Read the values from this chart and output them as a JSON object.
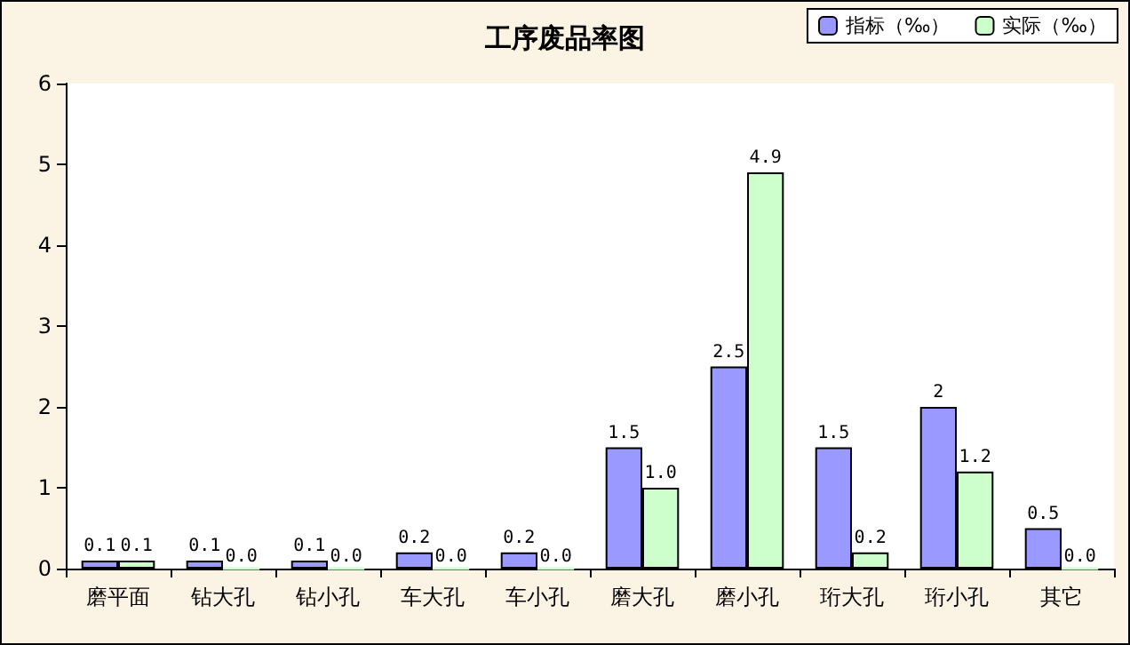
{
  "chart_data": {
    "type": "bar",
    "title": "工序废品率图",
    "categories": [
      "磨平面",
      "钻大孔",
      "钻小孔",
      "车大孔",
      "车小孔",
      "磨大孔",
      "磨小孔",
      "珩大孔",
      "珩小孔",
      "其它"
    ],
    "series": [
      {
        "name": "指标（‰）",
        "color": "#9999ff",
        "values": [
          0.1,
          0.1,
          0.1,
          0.2,
          0.2,
          1.5,
          2.5,
          1.5,
          2,
          0.5
        ],
        "value_labels": [
          "0.1",
          "0.1",
          "0.1",
          "0.2",
          "0.2",
          "1.5",
          "2.5",
          "1.5",
          "2",
          "0.5"
        ]
      },
      {
        "name": "实际（‰）",
        "color": "#ccffcc",
        "values": [
          0.1,
          0.0,
          0.0,
          0.0,
          0.0,
          1.0,
          4.9,
          0.2,
          1.2,
          0.0
        ],
        "value_labels": [
          "0.1",
          "0.0",
          "0.0",
          "0.0",
          "0.0",
          "1.0",
          "4.9",
          "0.2",
          "1.2",
          "0.0"
        ]
      }
    ],
    "ylim": [
      0,
      6
    ],
    "yticks": [
      0,
      1,
      2,
      3,
      4,
      5,
      6
    ],
    "grid": false,
    "legend": "top right"
  }
}
